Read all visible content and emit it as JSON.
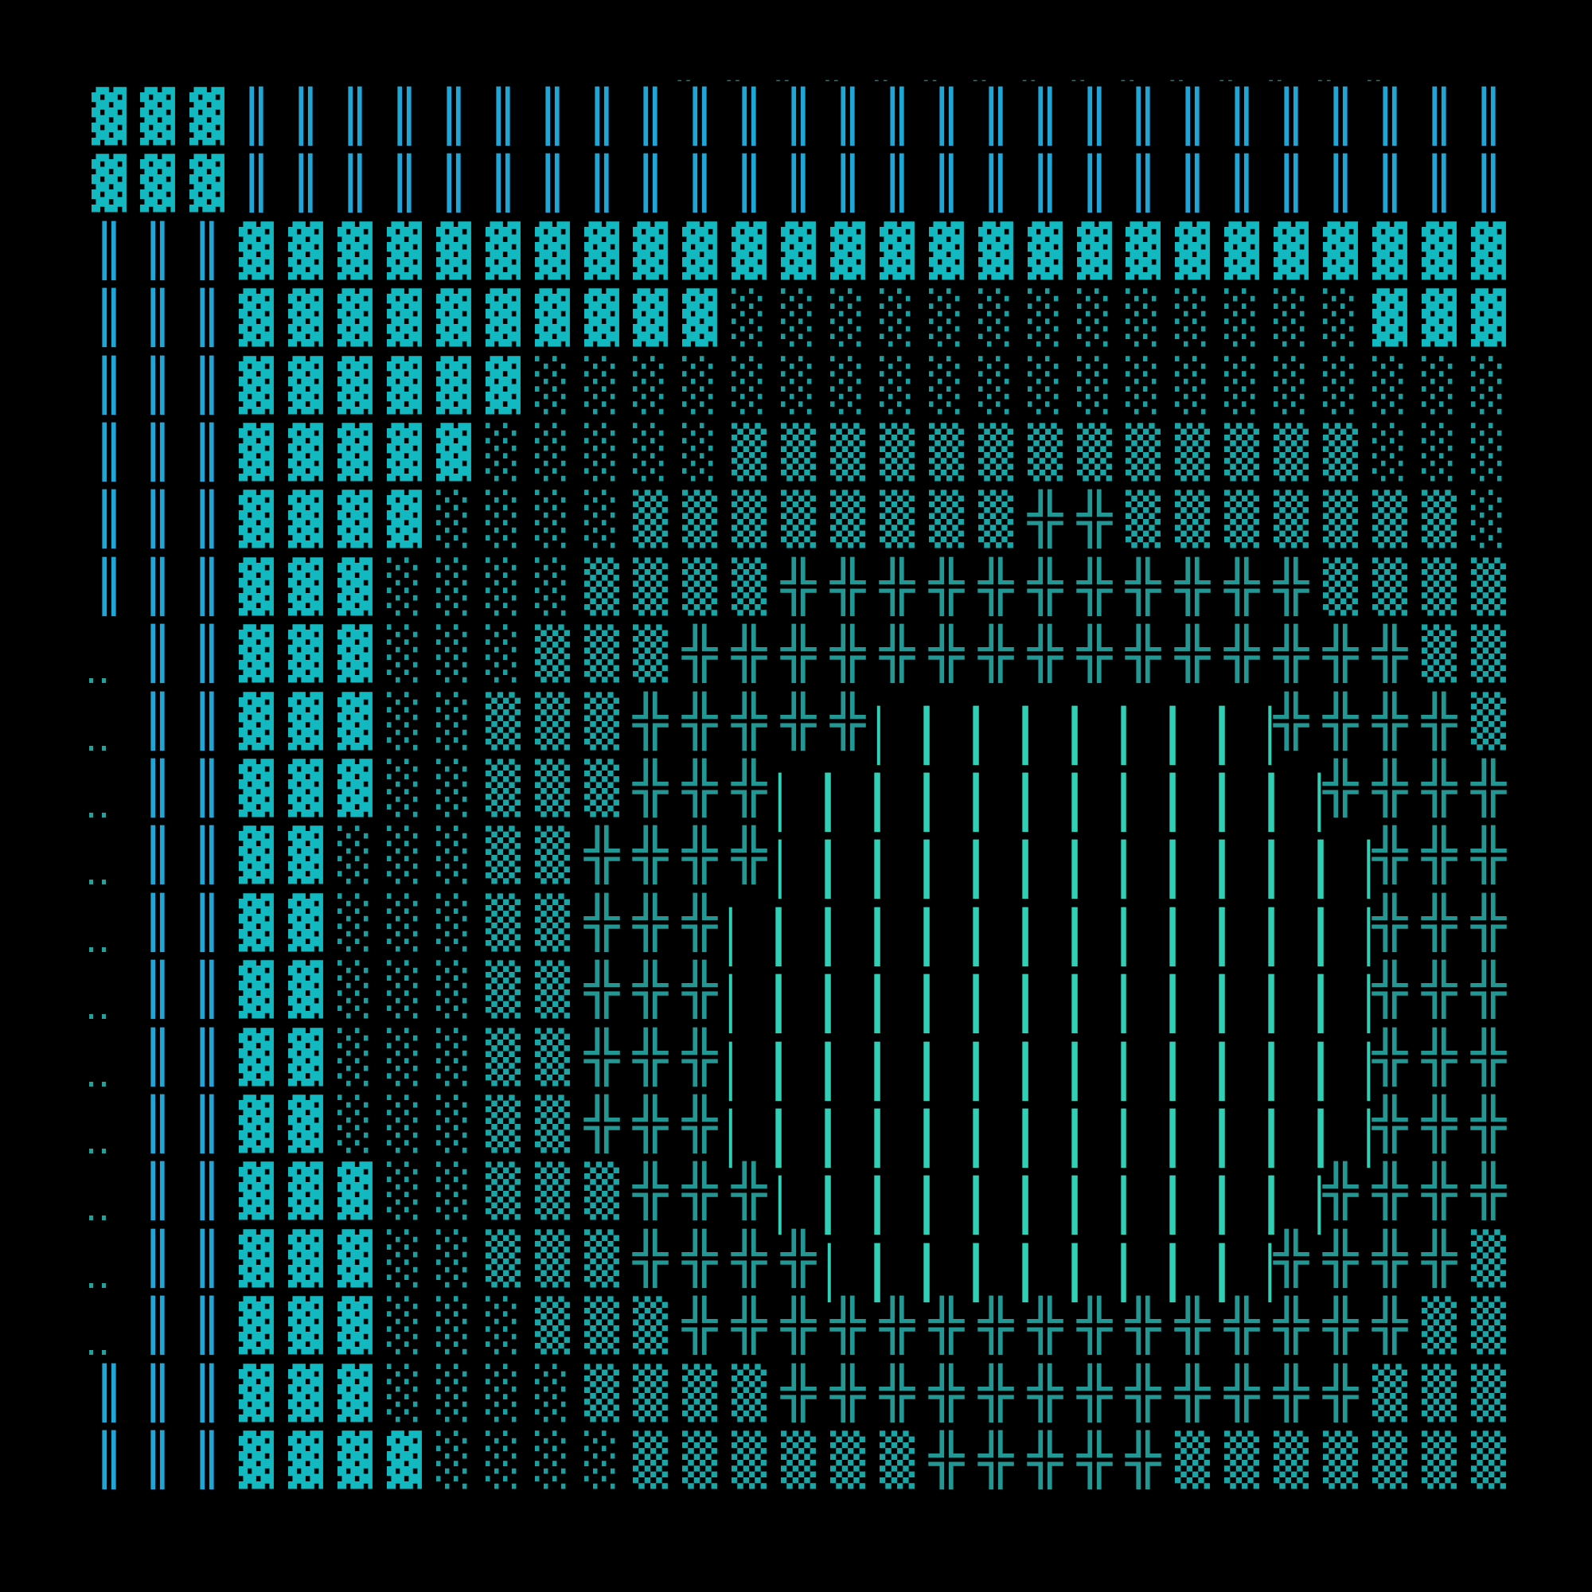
{
  "glyph_legend": {
    "D": {
      "char": "▓",
      "name": "dense-shade",
      "color": "#12b9c0"
    },
    "M": {
      "char": "▒",
      "name": "medium-shade",
      "color": "#1aa5a7"
    },
    "L": {
      "char": "░",
      "name": "light-shade",
      "color": "#1d9fa1"
    },
    "V": {
      "char": "║",
      "name": "double-vertical",
      "color": "#1fa6d6"
    },
    "X": {
      "char": "╬",
      "name": "double-cross",
      "color": "#229793"
    },
    "P": {
      "char": "▏▕",
      "name": "edge-bars",
      "color": "#2fd0b6"
    },
    ".": {
      "char": "‥",
      "name": "two-dots",
      "color": "#26a09b"
    },
    "-": {
      "char": "‐‐",
      "name": "faint-dashes",
      "color": "#1a7f7f"
    }
  },
  "background_color": "#000000",
  "top_marks": "            ---------------  ",
  "grid": [
    "DDDVVVVVVVVVVVVVVVVVVVVVVVVVV",
    "DDDVVVVVVVVVVVVVVVVVVVVVVVVVV",
    "VVVDDDDDDDDDDDDDDDDDDDDDDDDDD",
    "VVVDDDDDDDDDDLLLLLLLLLLLLLDDD",
    "VVVDDDDDDLLLLLLLLLLLLLLLLLLLL",
    "VVVDDDDDLLLLLMMMMMMMMMMMMMLLL",
    "VVVDDDDLLLLMMMMMMMMXXMMMMMMML",
    "VVVDDDLLLLMMMMXXXXXXXXXXXMMMM",
    ".VVDDDLLLMMMXXXXXXXXXXXXXXXMM",
    ".VVDDDLLMMMXXXXXPPPPPPPPXXXXM",
    ".VVDDDLLMMMXXXPPPPPPPPPPPXXXX",
    ".VVDDLLLMMXXXXPPPPPPPPPPPPXXX",
    ".VVDDLLLMMXXXPPPPPPPPPPPPPXXX",
    ".VVDDLLLMMXXXPPPPPPPPPPPPPXXX",
    ".VVDDLLLMMXXXPPPPPPPPPPPPPXXX",
    ".VVDDLLLMMXXXPPPPPPPPPPPPPXXX",
    ".VVDDDLLMMMXXXPPPPPPPPPPPXXXX",
    ".VVDDDLLMMMXXXXPPPPPPPPPXXXXM",
    ".VVDDDLLLMMMXXXXXXXXXXXXXXXMM",
    "VVVDDDLLLLMMMMXXXXXXXXXXXXMMM",
    "VVVDDDDLLLLMMMMMMXXXXXMMMMMMM"
  ]
}
